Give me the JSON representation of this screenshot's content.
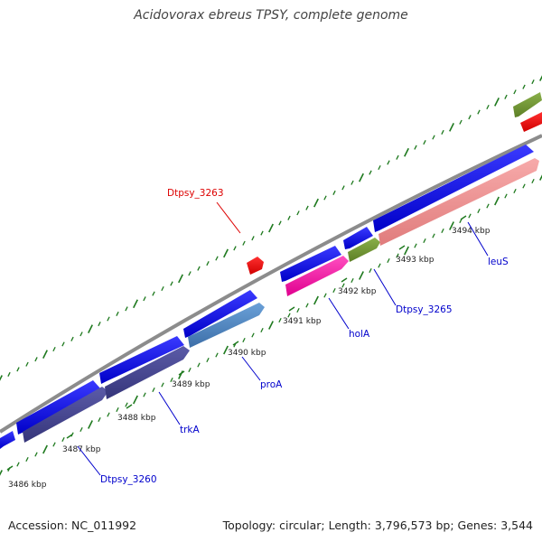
{
  "title": "Acidovorax ebreus TPSY, complete genome",
  "footer": {
    "accession": "Accession: NC_011992",
    "summary": "Topology: circular; Length: 3,796,573 bp; Genes: 3,544"
  },
  "colors": {
    "backbone": "#8c8c8c",
    "tick": "#1f7a1f",
    "cds_forward": "#0000ff",
    "red_feature": "#ff0000",
    "label_blue": "#0000cc",
    "label_red": "#dd0000"
  },
  "ticks": [
    {
      "label": "3486 kbp"
    },
    {
      "label": "3487 kbp"
    },
    {
      "label": "3488 kbp"
    },
    {
      "label": "3489 kbp"
    },
    {
      "label": "3490 kbp"
    },
    {
      "label": "3491 kbp"
    },
    {
      "label": "3492 kbp"
    },
    {
      "label": "3493 kbp"
    },
    {
      "label": "3494 kbp"
    }
  ],
  "gene_labels": [
    {
      "text": "Dtpsy_3263",
      "color": "#dd0000"
    },
    {
      "text": "Dtpsy_3260",
      "color": "#0000cc"
    },
    {
      "text": "trkA",
      "color": "#0000cc"
    },
    {
      "text": "proA",
      "color": "#0000cc"
    },
    {
      "text": "holA",
      "color": "#0000cc"
    },
    {
      "text": "Dtpsy_3265",
      "color": "#0000cc"
    },
    {
      "text": "leuS",
      "color": "#0000cc"
    }
  ]
}
